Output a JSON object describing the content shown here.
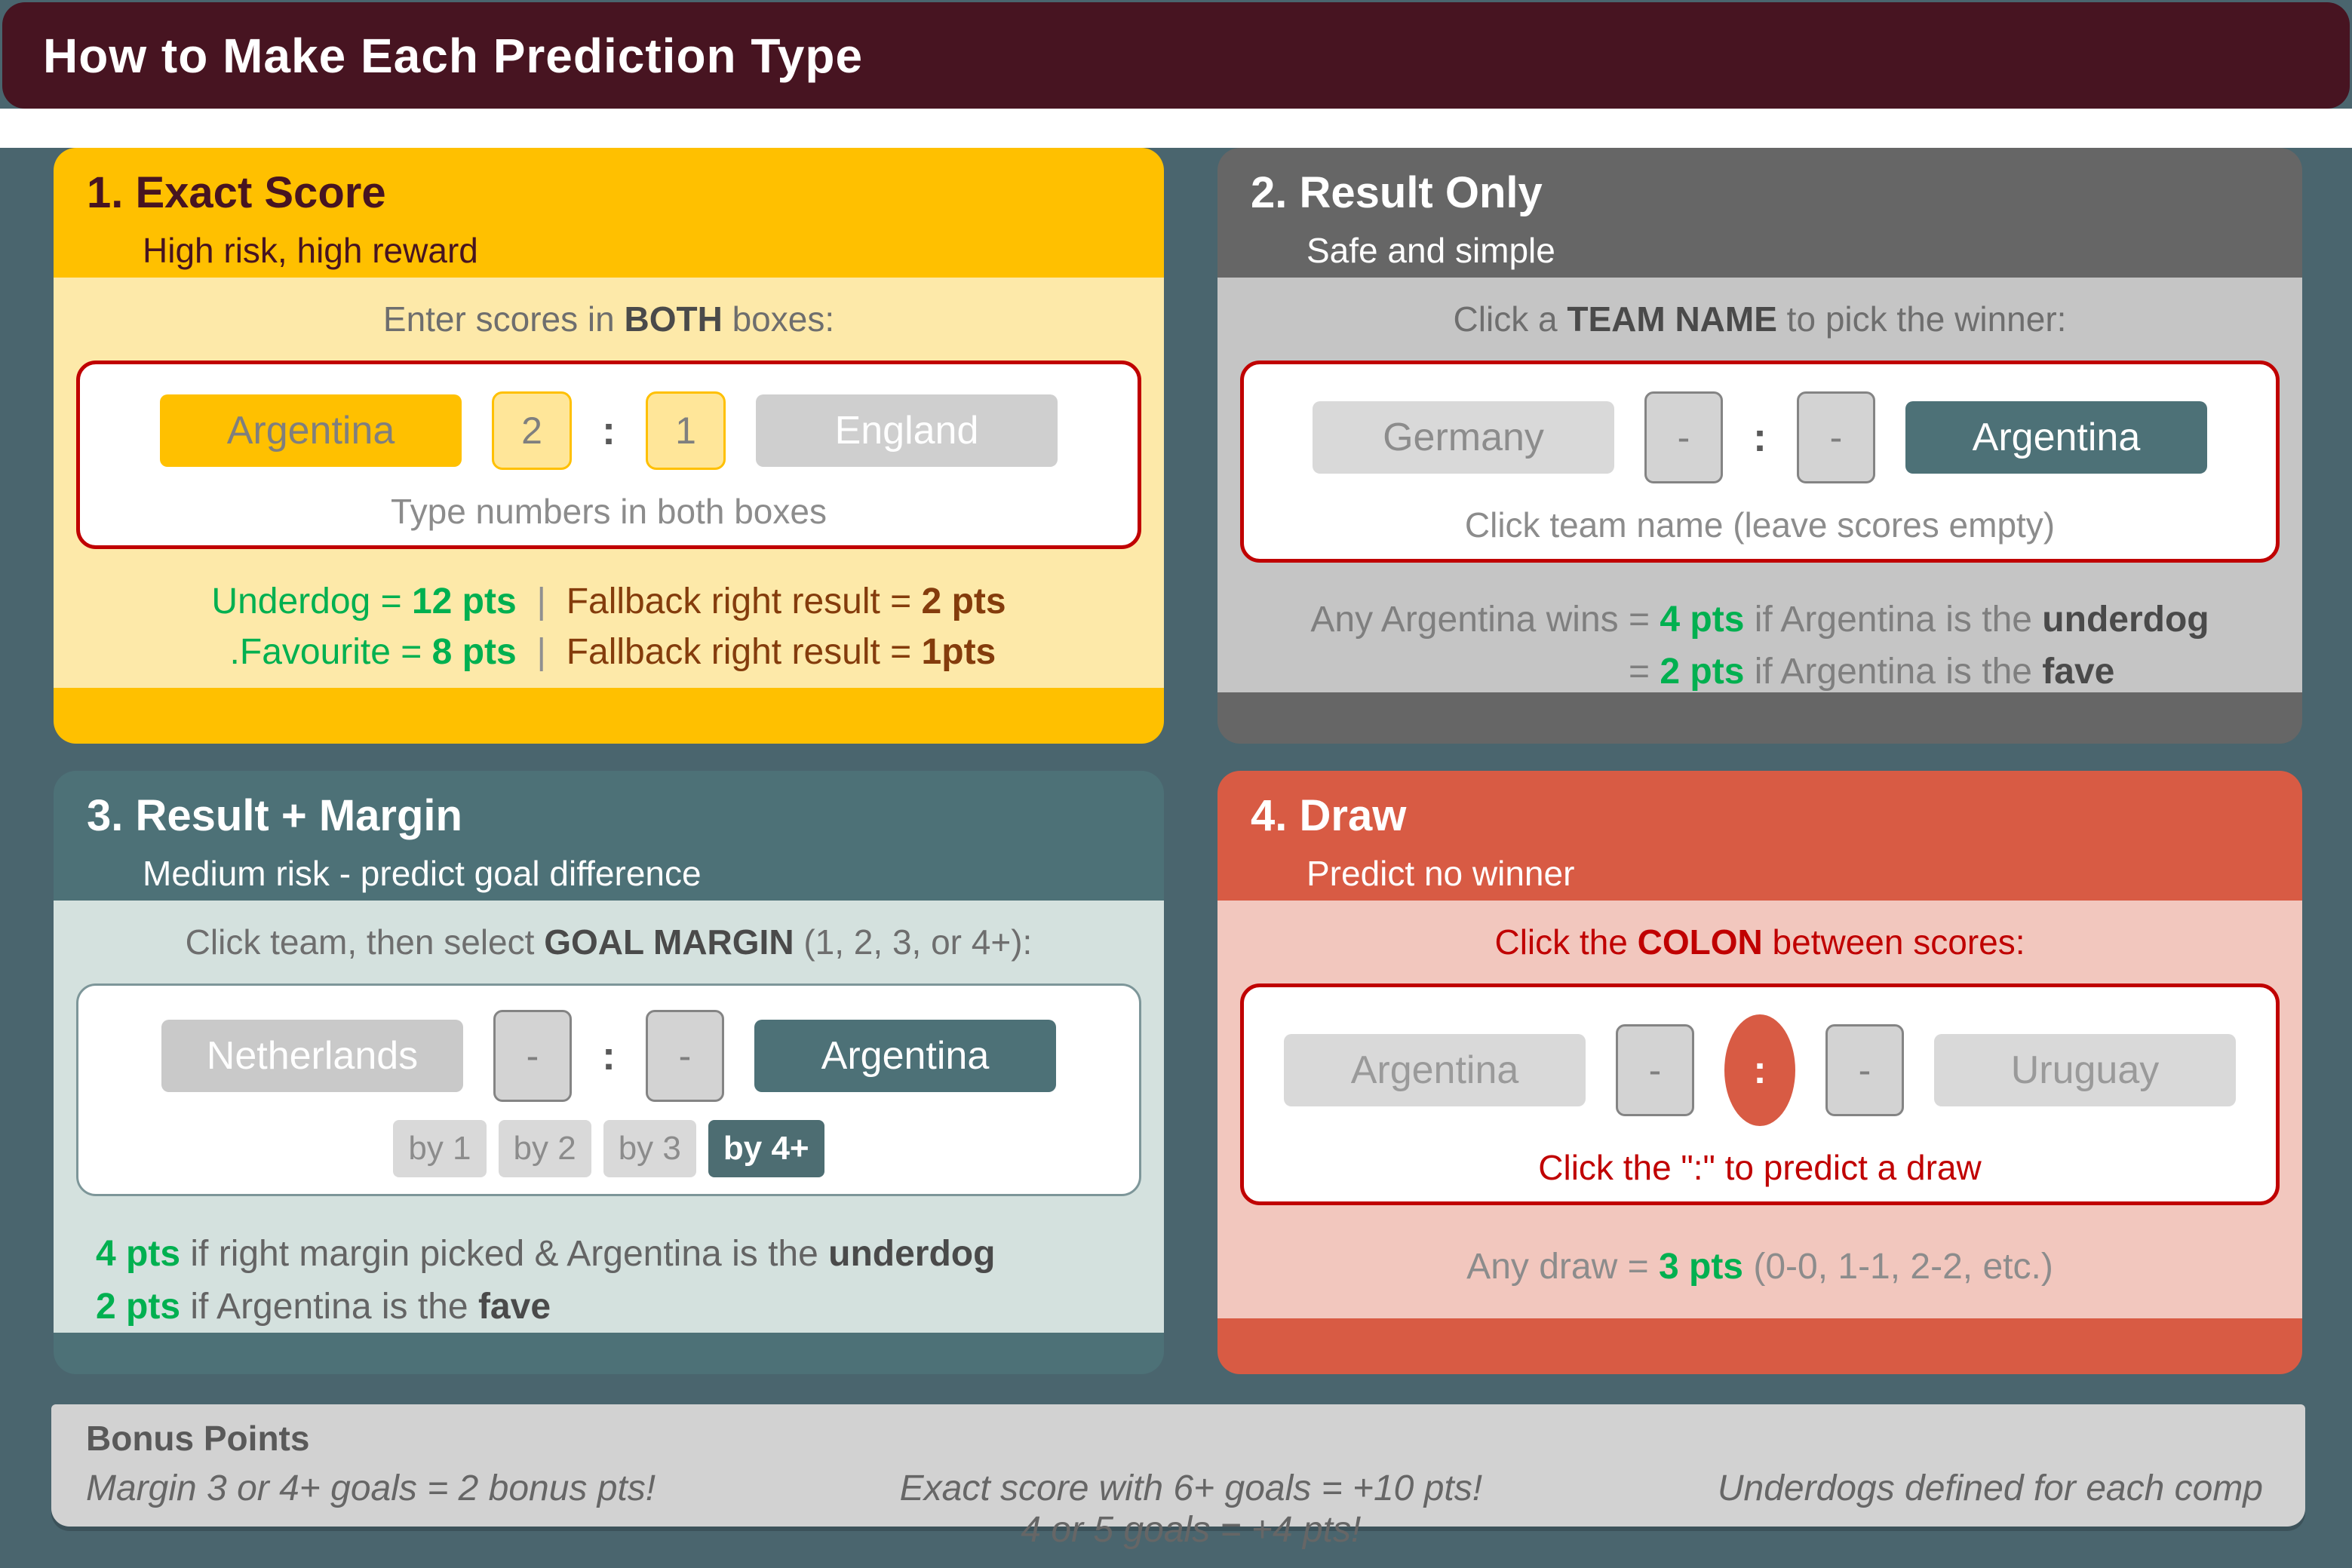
{
  "title": "How to Make Each Prediction Type",
  "colors": {
    "title_bar_maroon": "#471421",
    "background_teal": "#4A656E",
    "gold": "#FFC000",
    "light_yellow": "#FDE9A9",
    "dark_gray": "#666666",
    "light_gray": "#C5C5C5",
    "teal": "#4D7177",
    "light_teal": "#D4E1DE",
    "red": "#D85B44",
    "light_pink": "#F2C7BE",
    "red_accent": "#C00000",
    "green_points": "#00B050",
    "brown_points": "#843C0C"
  },
  "cards": {
    "exact_score": {
      "number_title": "1. Exact Score",
      "subtitle": "High risk, high reward",
      "instruction_pre": "Enter scores in ",
      "instruction_bold": "BOTH",
      "instruction_post": " boxes:",
      "home_team": "Argentina",
      "home_score": "2",
      "colon": ":",
      "away_score": "1",
      "away_team": "England",
      "hint": "Type numbers in both boxes",
      "points": {
        "row1_left_label": "Underdog = ",
        "row1_left_value": "12 pts",
        "separator": "|",
        "row1_right_label": "Fallback right result = ",
        "row1_right_value": "2 pts",
        "row2_left_label": ".Favourite = ",
        "row2_left_value": "8 pts",
        "row2_right_label": "Fallback right result = ",
        "row2_right_value": "1pts"
      }
    },
    "result_only": {
      "number_title": "2. Result Only",
      "subtitle": "Safe and simple",
      "instruction_pre": "Click a ",
      "instruction_bold": "TEAM NAME",
      "instruction_post": " to pick the winner:",
      "home_team": "Germany",
      "home_score": "-",
      "colon": ":",
      "away_score": "-",
      "away_team": "Argentina",
      "hint": "Click team name (leave scores empty)",
      "points": {
        "row1_prefix": "Any Argentina wins ",
        "row1_eq": "= ",
        "row1_value": "4 pts",
        "row1_mid": " if Argentina is the ",
        "row1_bold": "underdog",
        "row2_eq": "= ",
        "row2_value": "2 pts",
        "row2_mid": " if Argentina is the ",
        "row2_bold": "fave"
      }
    },
    "result_margin": {
      "number_title": "3. Result + Margin",
      "subtitle": "Medium risk - predict goal difference",
      "instruction_pre": "Click team, then select ",
      "instruction_bold": "GOAL MARGIN",
      "instruction_post": " (1, 2, 3, or 4+):",
      "home_team": "Netherlands",
      "home_score": "-",
      "colon": ":",
      "away_score": "-",
      "away_team": "Argentina",
      "margin_buttons": [
        "by 1",
        "by 2",
        "by 3",
        "by 4+"
      ],
      "selected_margin": "by 4+",
      "points": {
        "row1_value": "4 pts",
        "row1_text": " if right margin picked & Argentina is the ",
        "row1_bold": "underdog",
        "row2_value": "2 pts",
        "row2_text": " if Argentina is the ",
        "row2_bold": "fave"
      }
    },
    "draw": {
      "number_title": "4. Draw",
      "subtitle": "Predict no winner",
      "instruction_pre": "Click the ",
      "instruction_bold": "COLON",
      "instruction_post": " between scores:",
      "home_team": "Argentina",
      "home_score": "-",
      "colon": ":",
      "away_score": "-",
      "away_team": "Uruguay",
      "hint": "Click the \":\" to predict a draw",
      "points": {
        "prefix": "Any draw = ",
        "value": "3 pts",
        "suffix": " (0-0, 1-1, 2-2, etc.)"
      }
    }
  },
  "bonus": {
    "heading": "Bonus Points",
    "left": "Margin 3 or 4+ goals = 2 bonus pts!",
    "center_line1": "Exact score with 6+ goals = +10 pts!",
    "center_line2": "4 or 5 goals = +4 pts!",
    "right": "Underdogs defined for each comp"
  }
}
